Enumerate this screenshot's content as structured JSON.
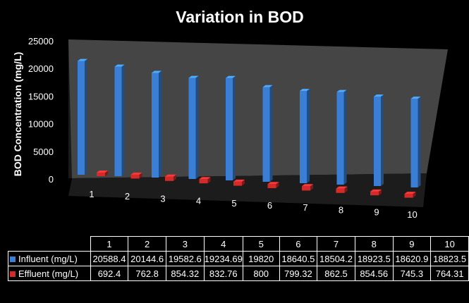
{
  "chart_data": {
    "type": "bar",
    "title": "Variation in BOD",
    "xlabel": "",
    "ylabel": "BOD Concentration (mg/L)",
    "ylim": [
      0,
      25000
    ],
    "yticks": [
      "0",
      "5000",
      "10000",
      "15000",
      "20000",
      "25000"
    ],
    "categories": [
      "1",
      "2",
      "3",
      "4",
      "5",
      "6",
      "7",
      "8",
      "9",
      "10"
    ],
    "series": [
      {
        "name": "Influent (mg/L)",
        "color": "#3a7fd5",
        "values": [
          20588.4,
          20144.6,
          19582.6,
          19234.69,
          19820,
          18640.5,
          18504.2,
          18923.5,
          18620.9,
          18823.5
        ],
        "labels": [
          "20588.4",
          "20144.6",
          "19582.6",
          "19234.69",
          "19820",
          "18640.5",
          "18504.2",
          "18923.5",
          "18620.9",
          "18823.5"
        ]
      },
      {
        "name": "Effluent (mg/L)",
        "color": "#d42a2a",
        "values": [
          692.4,
          762.8,
          854.32,
          832.76,
          800,
          799.32,
          862.5,
          854.56,
          745.3,
          764.31
        ],
        "labels": [
          "692.4",
          "762.8",
          "854.32",
          "832.76",
          "800",
          "799.32",
          "862.5",
          "854.56",
          "745.3",
          "764.31"
        ]
      }
    ],
    "legend": "table-below"
  }
}
